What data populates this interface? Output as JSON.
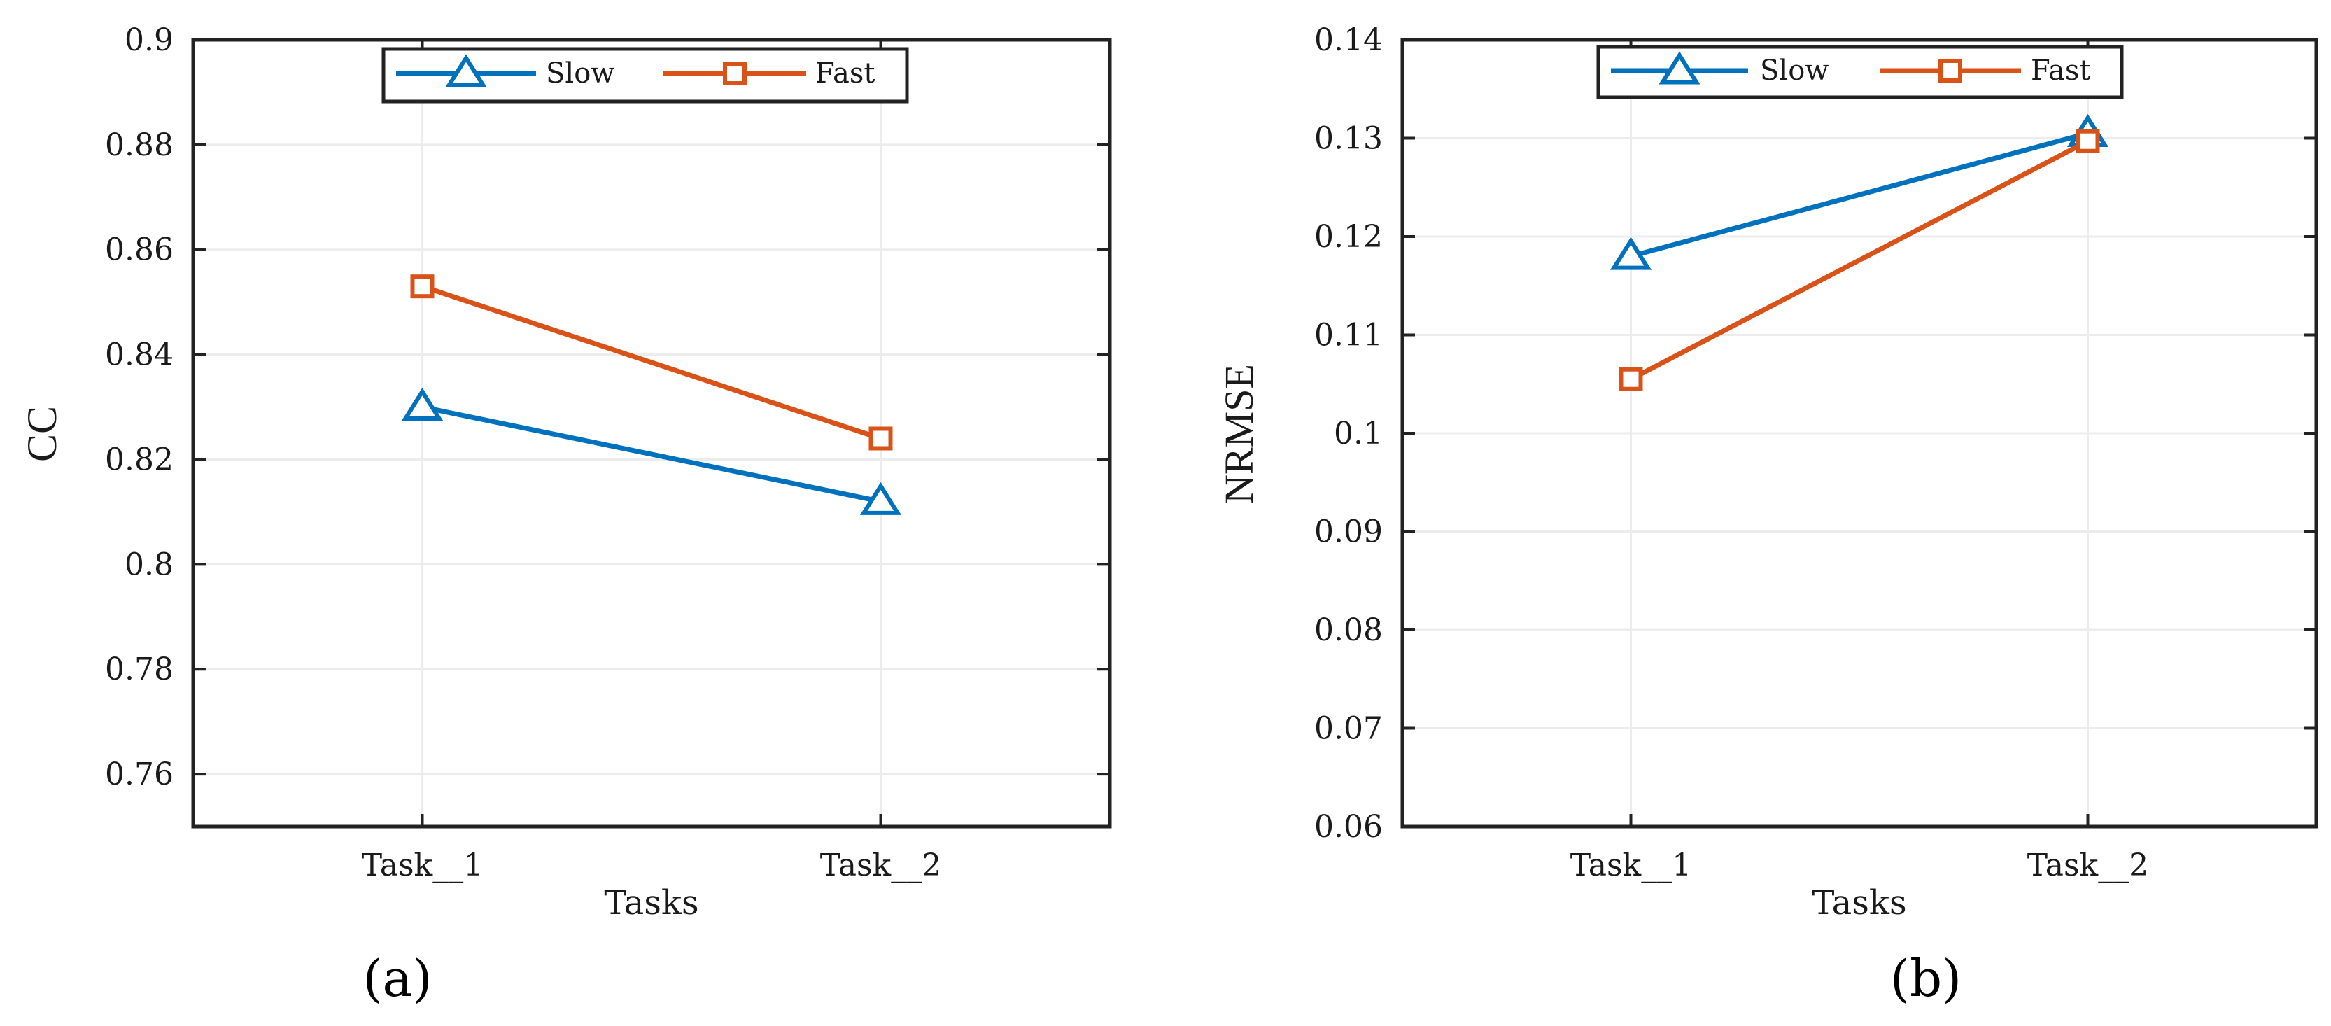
{
  "chart_data": [
    {
      "type": "line",
      "panel": "(a)",
      "categories": [
        "Task__1",
        "Task__2"
      ],
      "xlabel": "Tasks",
      "ylabel": "CC",
      "ylim": [
        0.75,
        0.9
      ],
      "yticks": [
        "0.76",
        "0.78",
        "0.8",
        "0.82",
        "0.84",
        "0.86",
        "0.88",
        "0.9"
      ],
      "grid": true,
      "legend_position": "top-center",
      "series": [
        {
          "name": "Slow",
          "values": [
            0.83,
            0.812
          ],
          "color": "#0072BD",
          "marker": "triangle"
        },
        {
          "name": "Fast",
          "values": [
            0.853,
            0.824
          ],
          "color": "#D95319",
          "marker": "square"
        }
      ]
    },
    {
      "type": "line",
      "panel": "(b)",
      "categories": [
        "Task__1",
        "Task__2"
      ],
      "xlabel": "Tasks",
      "ylabel": "NRMSE",
      "ylim": [
        0.06,
        0.14
      ],
      "yticks": [
        "0.06",
        "0.07",
        "0.08",
        "0.09",
        "0.1",
        "0.11",
        "0.12",
        "0.13",
        "0.14"
      ],
      "grid": true,
      "legend_position": "top-center",
      "series": [
        {
          "name": "Slow",
          "values": [
            0.118,
            0.1305
          ],
          "color": "#0072BD",
          "marker": "triangle"
        },
        {
          "name": "Fast",
          "values": [
            0.1055,
            0.1297
          ],
          "color": "#D95319",
          "marker": "square"
        }
      ]
    }
  ]
}
